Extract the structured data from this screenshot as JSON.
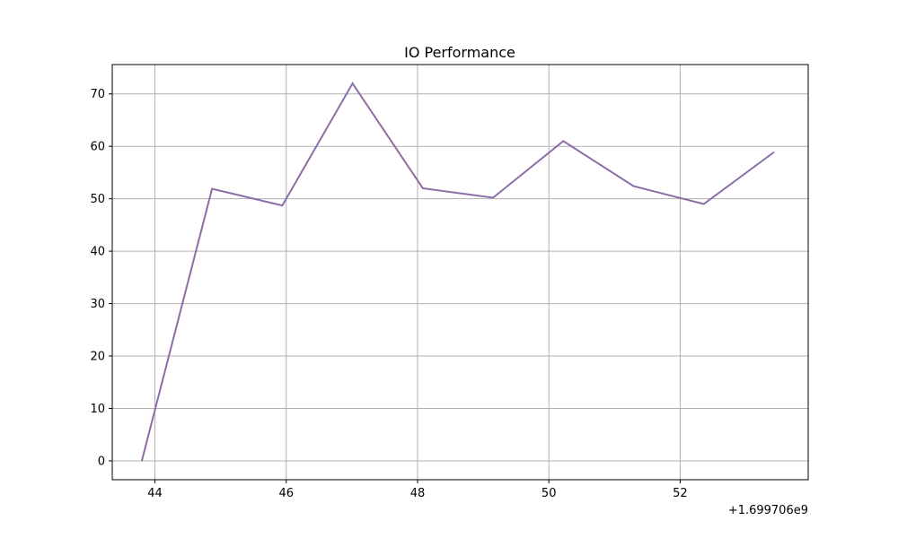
{
  "chart_data": {
    "type": "line",
    "title": "IO Performance",
    "xlabel": "",
    "ylabel": "",
    "x_offset_label": "+1.699706e9",
    "xlim": [
      43.35,
      53.95
    ],
    "ylim": [
      -3.6,
      75.6
    ],
    "x_ticks": [
      44,
      46,
      48,
      50,
      52
    ],
    "x_tick_labels": [
      "44",
      "46",
      "48",
      "50",
      "52"
    ],
    "y_ticks": [
      0,
      10,
      20,
      30,
      40,
      50,
      60,
      70
    ],
    "y_tick_labels": [
      "0",
      "10",
      "20",
      "30",
      "40",
      "50",
      "60",
      "70"
    ],
    "grid": true,
    "legend": "none",
    "series": [
      {
        "color": "#8c6da8",
        "x": [
          43.8,
          44.87,
          45.94,
          47.01,
          48.08,
          49.15,
          50.22,
          51.29,
          52.36,
          53.43
        ],
        "y": [
          0,
          51.9,
          48.7,
          72.0,
          52.0,
          50.2,
          61.0,
          52.4,
          49.0,
          58.9
        ]
      }
    ]
  }
}
